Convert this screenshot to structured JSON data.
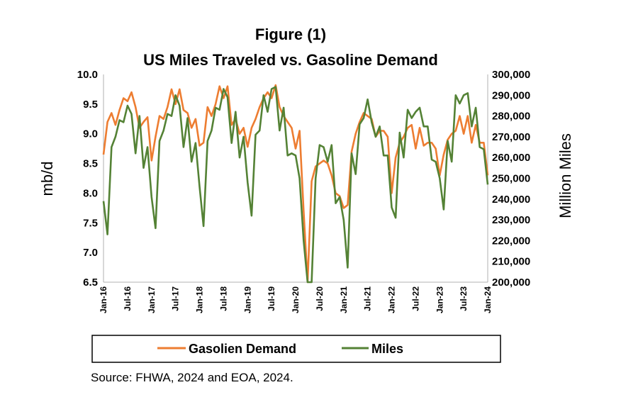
{
  "chart_data": {
    "type": "line",
    "title": "Figure (1)",
    "subtitle": "US Miles Traveled vs. Gasoline Demand",
    "ylabel_left": "mb/d",
    "ylabel_right": "Million Miles",
    "ylim_left": [
      6.5,
      10.0
    ],
    "ylim_right": [
      200000,
      300000
    ],
    "y_ticks_left": [
      "10.0",
      "9.5",
      "9.0",
      "8.5",
      "8.0",
      "7.5",
      "7.0",
      "6.5"
    ],
    "y_ticks_right": [
      "300,000",
      "290,000",
      "280,000",
      "270,000",
      "260,000",
      "250,000",
      "240,000",
      "230,000",
      "220,000",
      "210,000",
      "200,000"
    ],
    "x_ticks": [
      "Jan-16",
      "Jul-16",
      "Jan-17",
      "Jul-17",
      "Jan-18",
      "Jul-18",
      "Jan-19",
      "Jul-19",
      "Jan-20",
      "Jul-20",
      "Jan-21",
      "Jul-21",
      "Jan-22",
      "Jul-22",
      "Jan-23",
      "Jul-23",
      "Jan-24"
    ],
    "months_count": 97,
    "grid": false,
    "legend_position": "bottom",
    "series": [
      {
        "name": "Gasolien Demand",
        "axis": "left",
        "color": "#ED7D31",
        "values": [
          8.65,
          9.2,
          9.35,
          9.15,
          9.4,
          9.6,
          9.55,
          9.7,
          9.45,
          9.1,
          9.2,
          9.28,
          8.55,
          8.95,
          9.3,
          9.25,
          9.45,
          9.75,
          9.5,
          9.75,
          9.4,
          9.35,
          9.1,
          9.25,
          8.8,
          8.85,
          9.45,
          9.3,
          9.5,
          9.8,
          9.6,
          9.8,
          9.15,
          9.25,
          9.0,
          9.1,
          8.78,
          9.1,
          9.25,
          9.45,
          9.6,
          9.7,
          9.6,
          9.82,
          9.45,
          9.3,
          9.2,
          9.1,
          8.75,
          9.05,
          7.7,
          6.5,
          8.2,
          8.45,
          8.5,
          8.55,
          8.5,
          8.3,
          8.0,
          7.95,
          7.75,
          7.8,
          8.7,
          9.0,
          9.2,
          9.35,
          9.3,
          9.25,
          8.95,
          9.05,
          9.05,
          8.95,
          8.0,
          8.6,
          8.85,
          8.95,
          9.1,
          9.15,
          8.75,
          9.1,
          8.8,
          8.85,
          8.85,
          8.75,
          8.3,
          8.65,
          8.9,
          9.0,
          9.05,
          9.3,
          9.0,
          9.3,
          8.85,
          9.15,
          8.85,
          8.85,
          8.3
        ]
      },
      {
        "name": "Miles",
        "axis": "right",
        "color": "#548235",
        "values": [
          239000,
          223000,
          265000,
          270000,
          278000,
          277000,
          285000,
          281000,
          262000,
          280000,
          255000,
          265000,
          241000,
          226000,
          268000,
          273000,
          281000,
          280000,
          290000,
          285000,
          265000,
          279000,
          258000,
          267000,
          246000,
          227000,
          268000,
          273000,
          284000,
          283000,
          293000,
          289000,
          267000,
          282000,
          260000,
          270000,
          248000,
          232000,
          271000,
          273000,
          290000,
          282000,
          293000,
          294000,
          273000,
          284000,
          261000,
          262000,
          261000,
          250000,
          220000,
          196000,
          196000,
          250000,
          266000,
          265000,
          258000,
          266000,
          238000,
          241000,
          230000,
          207000,
          262000,
          252000,
          276000,
          279000,
          288000,
          277000,
          270000,
          275000,
          261000,
          261000,
          236000,
          231000,
          272000,
          260000,
          283000,
          279000,
          282000,
          284000,
          275000,
          275000,
          259000,
          258000,
          250000,
          235000,
          268000,
          258000,
          290000,
          286000,
          290000,
          291000,
          275000,
          284000,
          265000,
          264000,
          247000
        ]
      }
    ]
  },
  "source": "Source: FHWA, 2024 and EOA, 2024."
}
